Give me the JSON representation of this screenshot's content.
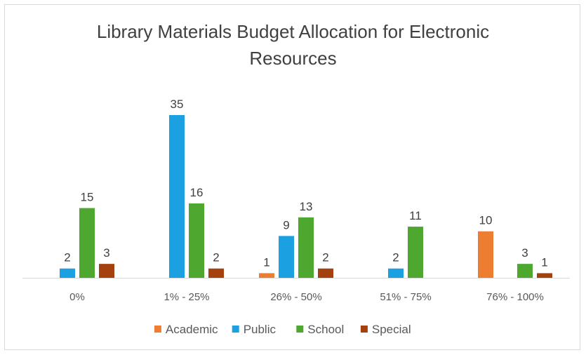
{
  "chart_data": {
    "type": "bar",
    "title_lines": [
      "Library Materials Budget Allocation for Electronic",
      "Resources"
    ],
    "categories": [
      "0%",
      "1% - 25%",
      "26% - 50%",
      "51% - 75%",
      "76% - 100%"
    ],
    "series": [
      {
        "name": "Academic",
        "color": "#ED7D31",
        "values": [
          null,
          null,
          1,
          null,
          10
        ]
      },
      {
        "name": "Public",
        "color": "#1BA1E2",
        "values": [
          2,
          35,
          9,
          2,
          null
        ]
      },
      {
        "name": "School",
        "color": "#4EA72E",
        "values": [
          15,
          16,
          13,
          11,
          3
        ]
      },
      {
        "name": "Special",
        "color": "#A5400F",
        "values": [
          3,
          2,
          2,
          null,
          1
        ]
      }
    ],
    "ylim": [
      0,
      35
    ],
    "grid": false,
    "legend_position": "bottom",
    "data_labels": true
  }
}
